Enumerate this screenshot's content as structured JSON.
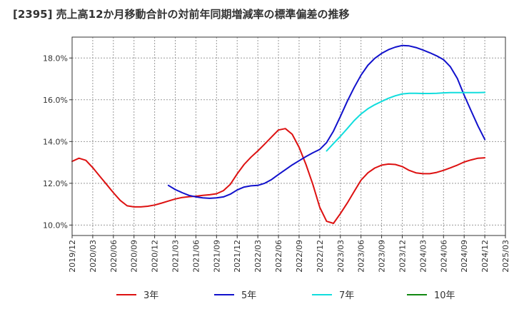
{
  "chart_data": {
    "type": "line",
    "title": "[2395]  売上高12か月移動合計の対前年同期増減率の標準偏差の推移",
    "xlabel": "",
    "ylabel": "",
    "ylim": [
      9.5,
      19.0
    ],
    "yticks": [
      10.0,
      12.0,
      14.0,
      16.0,
      18.0
    ],
    "ytick_labels": [
      "10.0%",
      "12.0%",
      "14.0%",
      "16.0%",
      "18.0%"
    ],
    "xtick_labels": [
      "2019/12",
      "2020/03",
      "2020/06",
      "2020/09",
      "2020/12",
      "2021/03",
      "2021/06",
      "2021/09",
      "2021/12",
      "2022/03",
      "2022/06",
      "2022/09",
      "2022/12",
      "2023/03",
      "2023/06",
      "2023/09",
      "2023/12",
      "2024/03",
      "2024/06",
      "2024/09",
      "2024/12",
      "2025/03"
    ],
    "grid": true,
    "legend_position": "bottom",
    "series": [
      {
        "name": "3年",
        "color": "#dd1111",
        "x": [
          "2019/12",
          "2020/01",
          "2020/02",
          "2020/03",
          "2020/04",
          "2020/05",
          "2020/06",
          "2020/07",
          "2020/08",
          "2020/09",
          "2020/10",
          "2020/11",
          "2020/12",
          "2021/01",
          "2021/02",
          "2021/03",
          "2021/04",
          "2021/05",
          "2021/06",
          "2021/07",
          "2021/08",
          "2021/09",
          "2021/10",
          "2021/11",
          "2021/12",
          "2022/01",
          "2022/02",
          "2022/03",
          "2022/04",
          "2022/05",
          "2022/06",
          "2022/07",
          "2022/08",
          "2022/09",
          "2022/10",
          "2022/11",
          "2022/12",
          "2023/01",
          "2023/02",
          "2023/03",
          "2023/04",
          "2023/05",
          "2023/06",
          "2023/07",
          "2023/08",
          "2023/09",
          "2023/10",
          "2023/11",
          "2023/12",
          "2024/01",
          "2024/02",
          "2024/03",
          "2024/04",
          "2024/05",
          "2024/06",
          "2024/07",
          "2024/08",
          "2024/09",
          "2024/10",
          "2024/11",
          "2024/12"
        ],
        "values": [
          13.05,
          13.2,
          13.1,
          12.75,
          12.35,
          11.95,
          11.55,
          11.18,
          10.92,
          10.87,
          10.87,
          10.9,
          10.96,
          11.05,
          11.15,
          11.25,
          11.32,
          11.36,
          11.38,
          11.42,
          11.45,
          11.5,
          11.65,
          11.95,
          12.45,
          12.9,
          13.25,
          13.55,
          13.88,
          14.22,
          14.55,
          14.62,
          14.35,
          13.72,
          12.9,
          11.95,
          10.85,
          10.18,
          10.08,
          10.55,
          11.05,
          11.6,
          12.15,
          12.5,
          12.73,
          12.87,
          12.92,
          12.9,
          12.8,
          12.62,
          12.5,
          12.46,
          12.46,
          12.52,
          12.62,
          12.74,
          12.87,
          13.02,
          13.12,
          13.2,
          13.22
        ]
      },
      {
        "name": "5年",
        "color": "#1111cc",
        "x": [
          "2021/02",
          "2021/03",
          "2021/04",
          "2021/05",
          "2021/06",
          "2021/07",
          "2021/08",
          "2021/09",
          "2021/10",
          "2021/11",
          "2021/12",
          "2022/01",
          "2022/02",
          "2022/03",
          "2022/04",
          "2022/05",
          "2022/06",
          "2022/07",
          "2022/08",
          "2022/09",
          "2022/10",
          "2022/11",
          "2022/12",
          "2023/01",
          "2023/02",
          "2023/03",
          "2023/04",
          "2023/05",
          "2023/06",
          "2023/07",
          "2023/08",
          "2023/09",
          "2023/10",
          "2023/11",
          "2023/12",
          "2024/01",
          "2024/02",
          "2024/03",
          "2024/04",
          "2024/05",
          "2024/06",
          "2024/07",
          "2024/08",
          "2024/09",
          "2024/10",
          "2024/11",
          "2024/12"
        ],
        "values": [
          11.9,
          11.7,
          11.55,
          11.42,
          11.35,
          11.3,
          11.28,
          11.3,
          11.35,
          11.48,
          11.68,
          11.82,
          11.88,
          11.9,
          12.0,
          12.18,
          12.42,
          12.65,
          12.88,
          13.08,
          13.28,
          13.46,
          13.62,
          13.95,
          14.5,
          15.2,
          15.92,
          16.58,
          17.18,
          17.65,
          17.98,
          18.22,
          18.4,
          18.52,
          18.6,
          18.58,
          18.5,
          18.38,
          18.25,
          18.1,
          17.92,
          17.58,
          17.02,
          16.22,
          15.48,
          14.75,
          14.1
        ]
      },
      {
        "name": "7年",
        "color": "#11dddd",
        "x": [
          "2023/01",
          "2023/02",
          "2023/03",
          "2023/04",
          "2023/05",
          "2023/06",
          "2023/07",
          "2023/08",
          "2023/09",
          "2023/10",
          "2023/11",
          "2023/12",
          "2024/01",
          "2024/02",
          "2024/03",
          "2024/04",
          "2024/05",
          "2024/06",
          "2024/07",
          "2024/08",
          "2024/09",
          "2024/10",
          "2024/11",
          "2024/12"
        ],
        "values": [
          13.55,
          13.9,
          14.25,
          14.62,
          15.0,
          15.32,
          15.57,
          15.76,
          15.92,
          16.07,
          16.19,
          16.28,
          16.31,
          16.31,
          16.3,
          16.3,
          16.31,
          16.33,
          16.34,
          16.34,
          16.34,
          16.34,
          16.34,
          16.35
        ]
      },
      {
        "name": "10年",
        "color": "#118811",
        "x": [],
        "values": []
      }
    ]
  }
}
